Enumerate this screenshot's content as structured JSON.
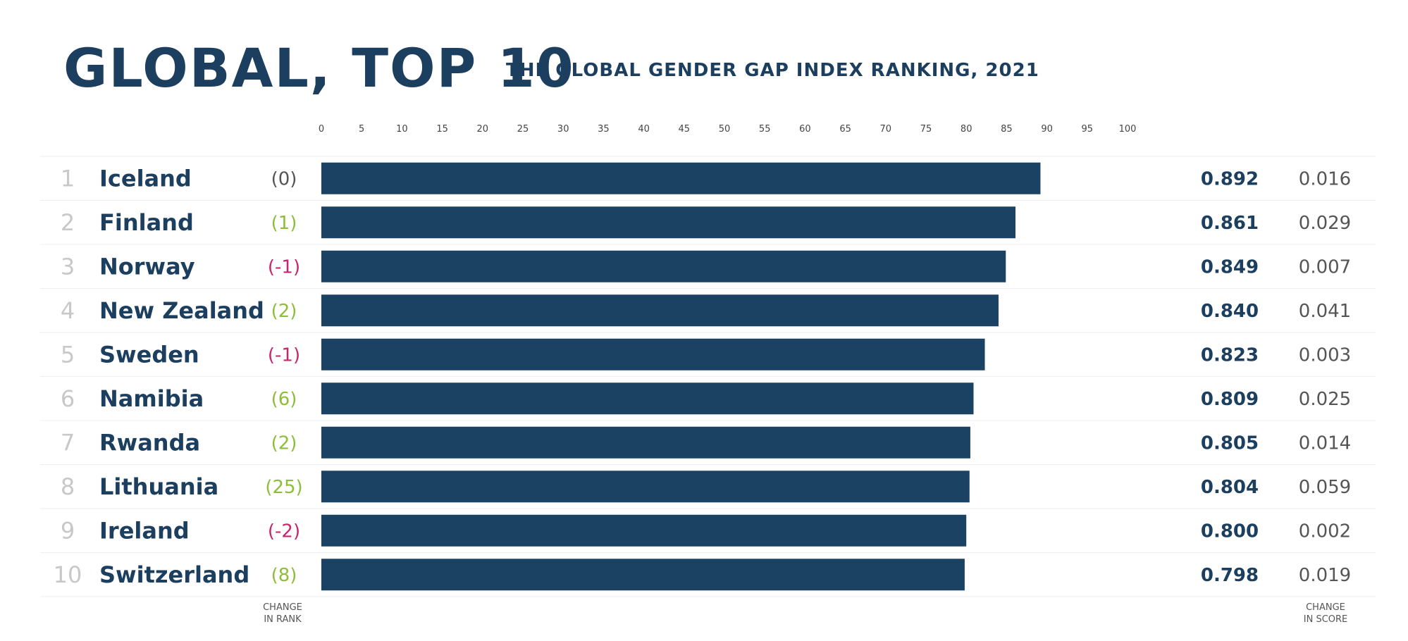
{
  "header": {
    "title": "GLOBAL, TOP 10",
    "subtitle": "THE GLOBAL GENDER GAP INDEX RANKING, 2021"
  },
  "footer": {
    "change_in_rank": [
      "CHANGE",
      "IN RANK"
    ],
    "change_in_score": [
      "CHANGE",
      "IN SCORE"
    ]
  },
  "colors": {
    "bar": "#1c4263",
    "positive_change": "#8dbd3a",
    "negative_change": "#c9256d",
    "neutral_change": "#555555",
    "rank_number": "#c8c8c8",
    "row_divider": "#eeeeee"
  },
  "chart_data": {
    "type": "bar",
    "orientation": "horizontal",
    "title": "GLOBAL, TOP 10",
    "subtitle": "THE GLOBAL GENDER GAP INDEX RANKING, 2021",
    "xlim": [
      0,
      100
    ],
    "x_ticks": [
      "0",
      "5",
      "10",
      "15",
      "20",
      "25",
      "30",
      "35",
      "40",
      "45",
      "50",
      "55",
      "60",
      "65",
      "70",
      "75",
      "80",
      "85",
      "90",
      "95",
      "100"
    ],
    "rows": [
      {
        "rank": "1",
        "country": "Iceland",
        "change_in_rank": "(0)",
        "score": 0.892,
        "score_label": "0.892",
        "change_in_score": "0.016"
      },
      {
        "rank": "2",
        "country": "Finland",
        "change_in_rank": "(1)",
        "score": 0.861,
        "score_label": "0.861",
        "change_in_score": "0.029"
      },
      {
        "rank": "3",
        "country": "Norway",
        "change_in_rank": "(-1)",
        "score": 0.849,
        "score_label": "0.849",
        "change_in_score": "0.007"
      },
      {
        "rank": "4",
        "country": "New Zealand",
        "change_in_rank": "(2)",
        "score": 0.84,
        "score_label": "0.840",
        "change_in_score": "0.041"
      },
      {
        "rank": "5",
        "country": "Sweden",
        "change_in_rank": "(-1)",
        "score": 0.823,
        "score_label": "0.823",
        "change_in_score": "0.003"
      },
      {
        "rank": "6",
        "country": "Namibia",
        "change_in_rank": "(6)",
        "score": 0.809,
        "score_label": "0.809",
        "change_in_score": "0.025"
      },
      {
        "rank": "7",
        "country": "Rwanda",
        "change_in_rank": "(2)",
        "score": 0.805,
        "score_label": "0.805",
        "change_in_score": "0.014"
      },
      {
        "rank": "8",
        "country": "Lithuania",
        "change_in_rank": "(25)",
        "score": 0.804,
        "score_label": "0.804",
        "change_in_score": "0.059"
      },
      {
        "rank": "9",
        "country": "Ireland",
        "change_in_rank": "(-2)",
        "score": 0.8,
        "score_label": "0.800",
        "change_in_score": "0.002"
      },
      {
        "rank": "10",
        "country": "Switzerland",
        "change_in_rank": "(8)",
        "score": 0.798,
        "score_label": "0.798",
        "change_in_score": "0.019"
      }
    ]
  }
}
